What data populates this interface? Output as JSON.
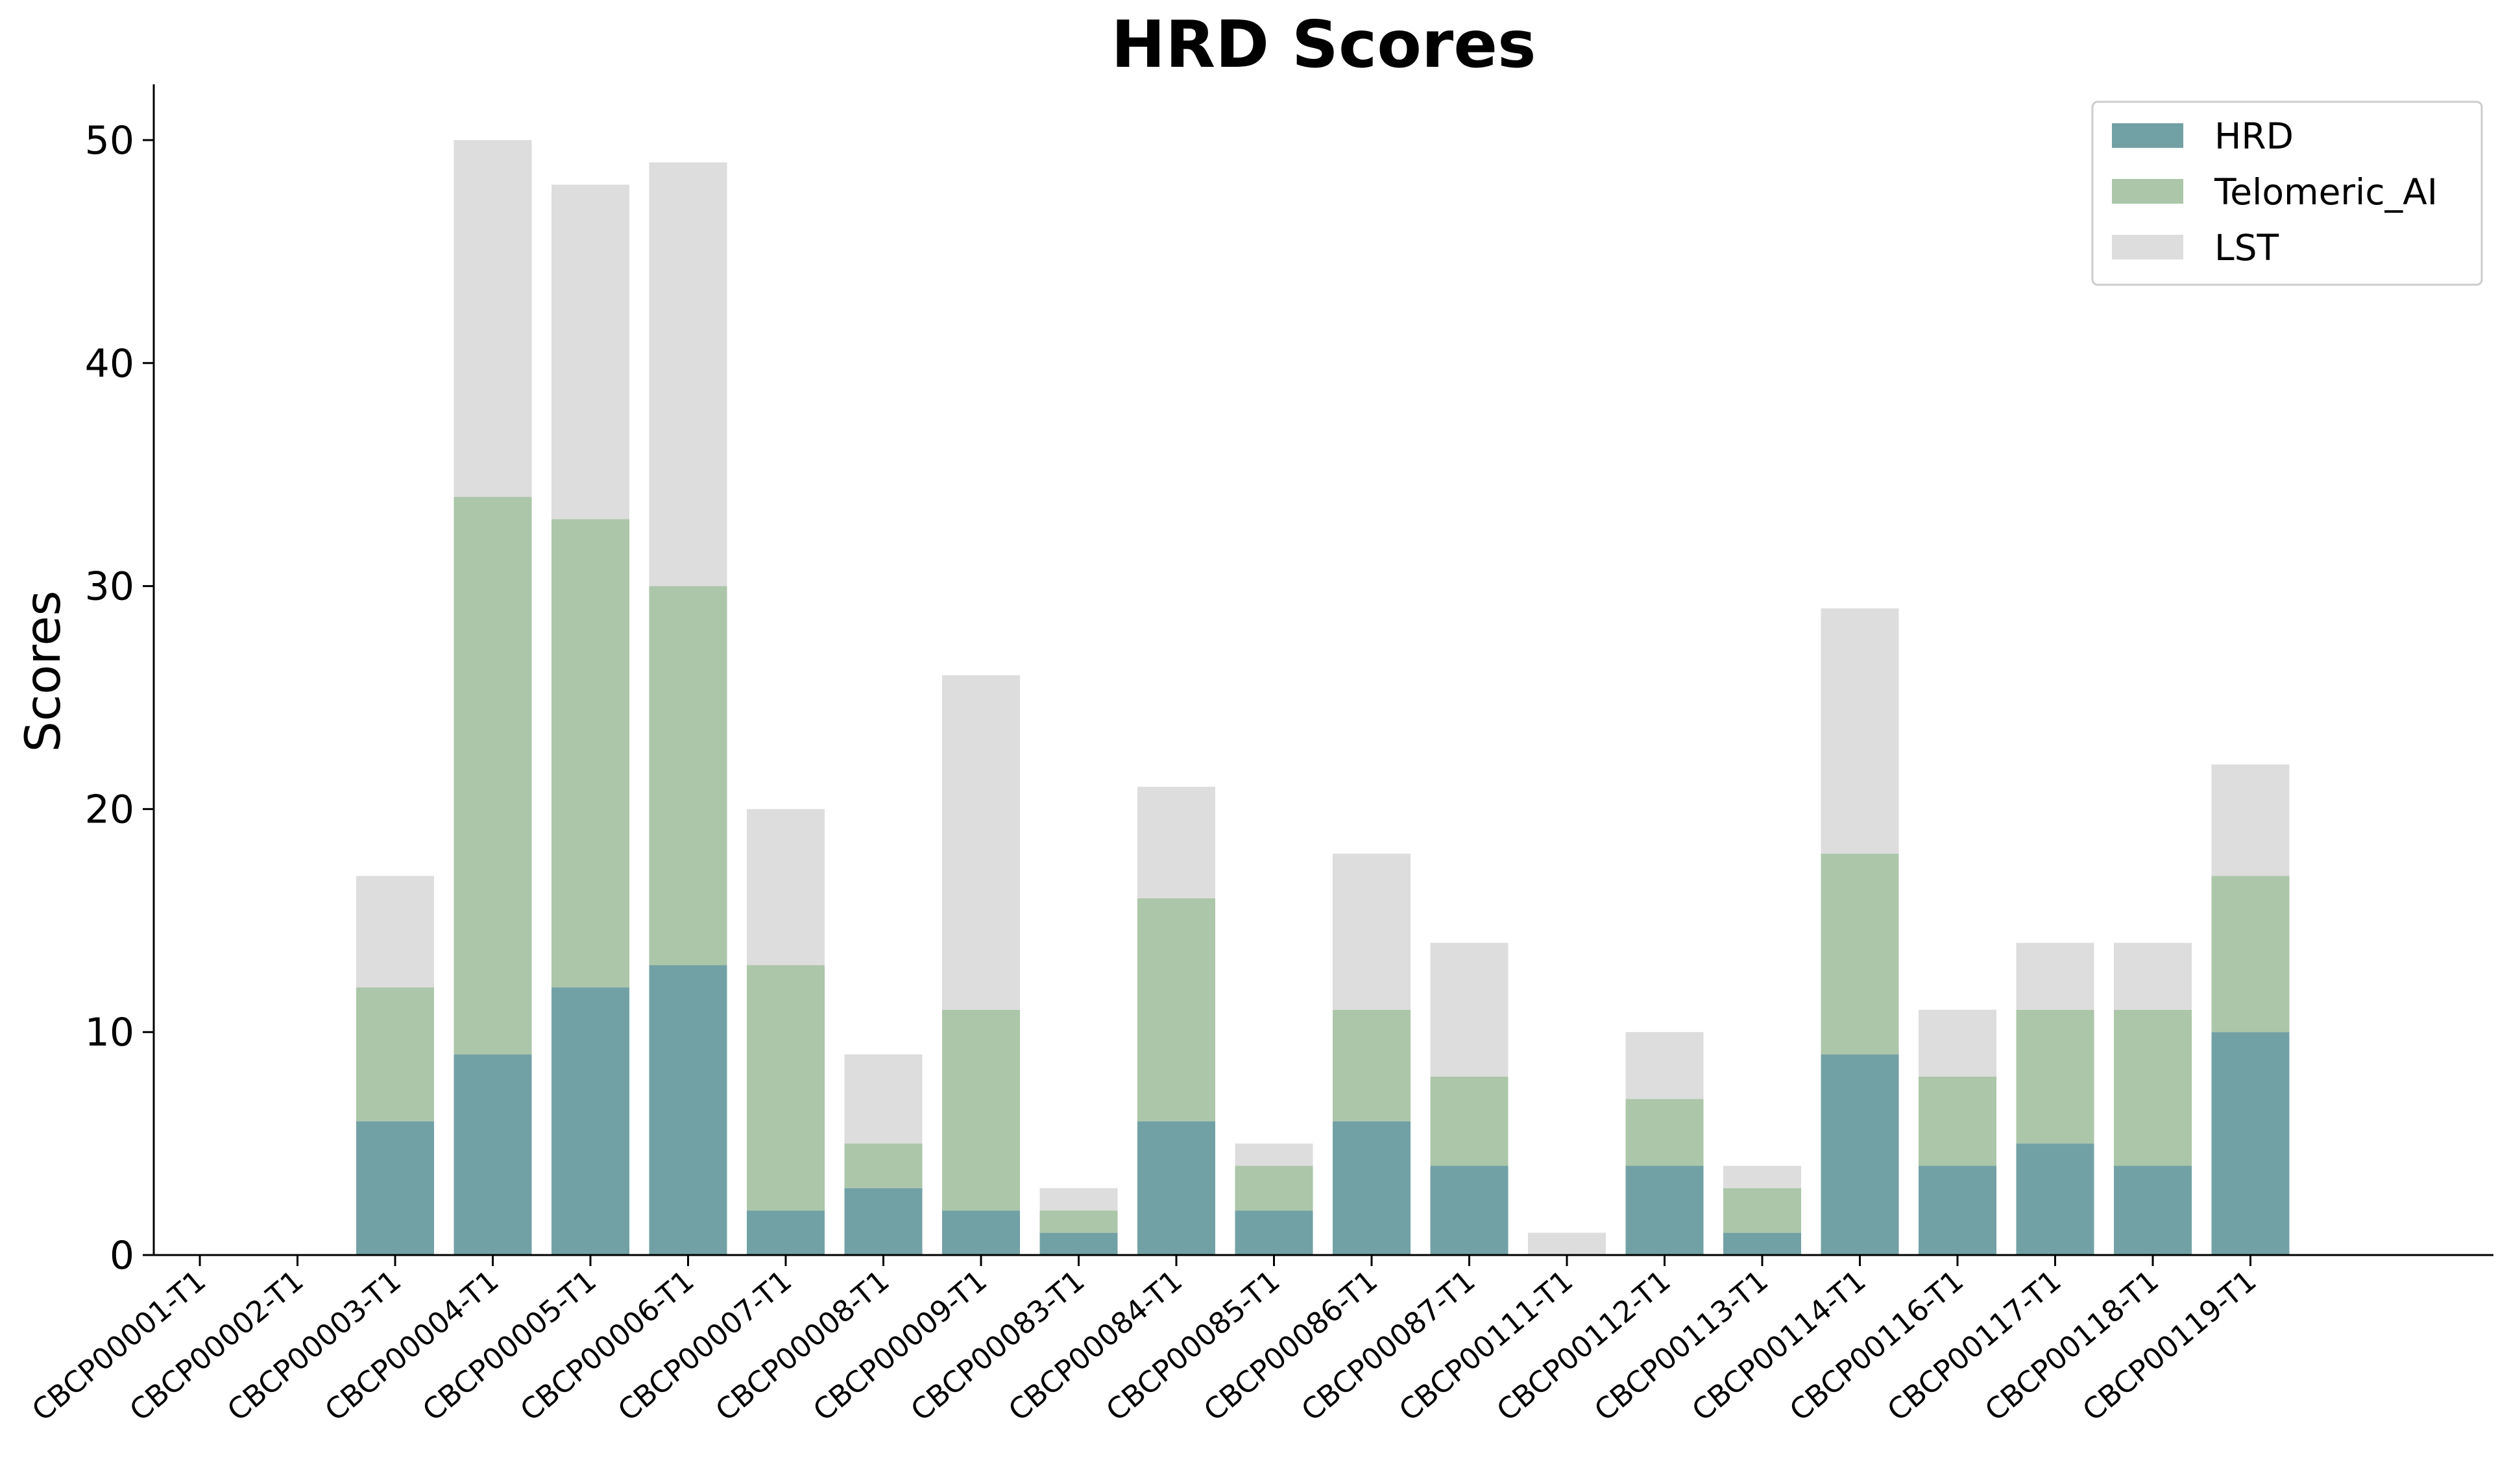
{
  "chart_data": {
    "type": "bar",
    "stacked": true,
    "title": "HRD Scores",
    "xlabel": "",
    "ylabel": "Scores",
    "ylim": [
      0,
      52.5
    ],
    "yticks": [
      0,
      10,
      20,
      30,
      40,
      50
    ],
    "categories": [
      "CBCP00001-T1",
      "CBCP00002-T1",
      "CBCP00003-T1",
      "CBCP00004-T1",
      "CBCP00005-T1",
      "CBCP00006-T1",
      "CBCP00007-T1",
      "CBCP00008-T1",
      "CBCP00009-T1",
      "CBCP00083-T1",
      "CBCP00084-T1",
      "CBCP00085-T1",
      "CBCP00086-T1",
      "CBCP00087-T1",
      "CBCP00111-T1",
      "CBCP00112-T1",
      "CBCP00113-T1",
      "CBCP00114-T1",
      "CBCP00116-T1",
      "CBCP00117-T1",
      "CBCP00118-T1",
      "CBCP00119-T1"
    ],
    "series": [
      {
        "name": "HRD",
        "color": "#72a1a5",
        "values": [
          0,
          0,
          6,
          9,
          12,
          13,
          2,
          3,
          2,
          1,
          6,
          2,
          6,
          4,
          0,
          4,
          1,
          9,
          4,
          5,
          4,
          10
        ]
      },
      {
        "name": "Telomeric_AI",
        "color": "#abc6a8",
        "values": [
          0,
          0,
          6,
          25,
          21,
          17,
          11,
          2,
          9,
          1,
          10,
          2,
          5,
          4,
          0,
          3,
          2,
          9,
          4,
          6,
          7,
          7
        ]
      },
      {
        "name": "LST",
        "color": "#dddddd",
        "values": [
          0,
          0,
          5,
          16,
          15,
          19,
          7,
          4,
          15,
          1,
          5,
          1,
          7,
          6,
          1,
          3,
          1,
          11,
          3,
          3,
          3,
          5
        ]
      }
    ],
    "legend_position": "top-right",
    "grid": false
  }
}
